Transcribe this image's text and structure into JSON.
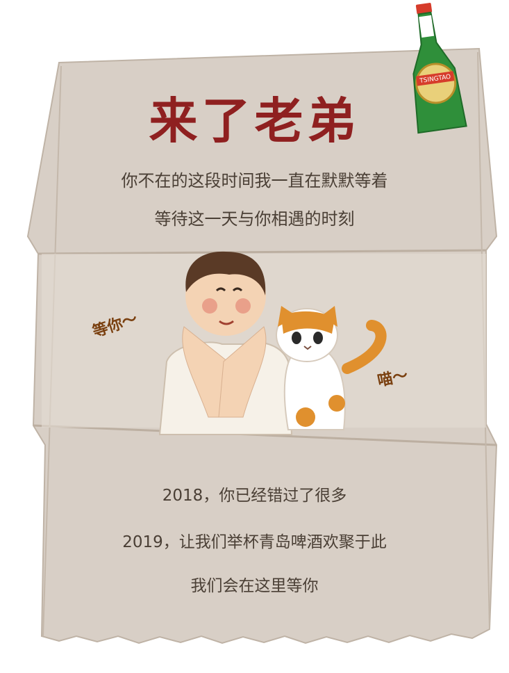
{
  "title": "来了老弟",
  "intro_lines": [
    "你不在的这段时间我一直在默默等着",
    "等待这一天与你相遇的时刻"
  ],
  "speech": {
    "person": "等你～",
    "cat": "喵～"
  },
  "closing_lines": [
    "2018，你已经错过了很多",
    "2019，让我们举杯青岛啤酒欢聚于此",
    "我们会在这里等你"
  ],
  "beer_label": "TSINGTAO",
  "colors": {
    "paper": "#d8cfc6",
    "title": "#8f2020",
    "text": "#4a3f35",
    "beer_green": "#2f8f3a",
    "cat_orange": "#e0902e"
  }
}
